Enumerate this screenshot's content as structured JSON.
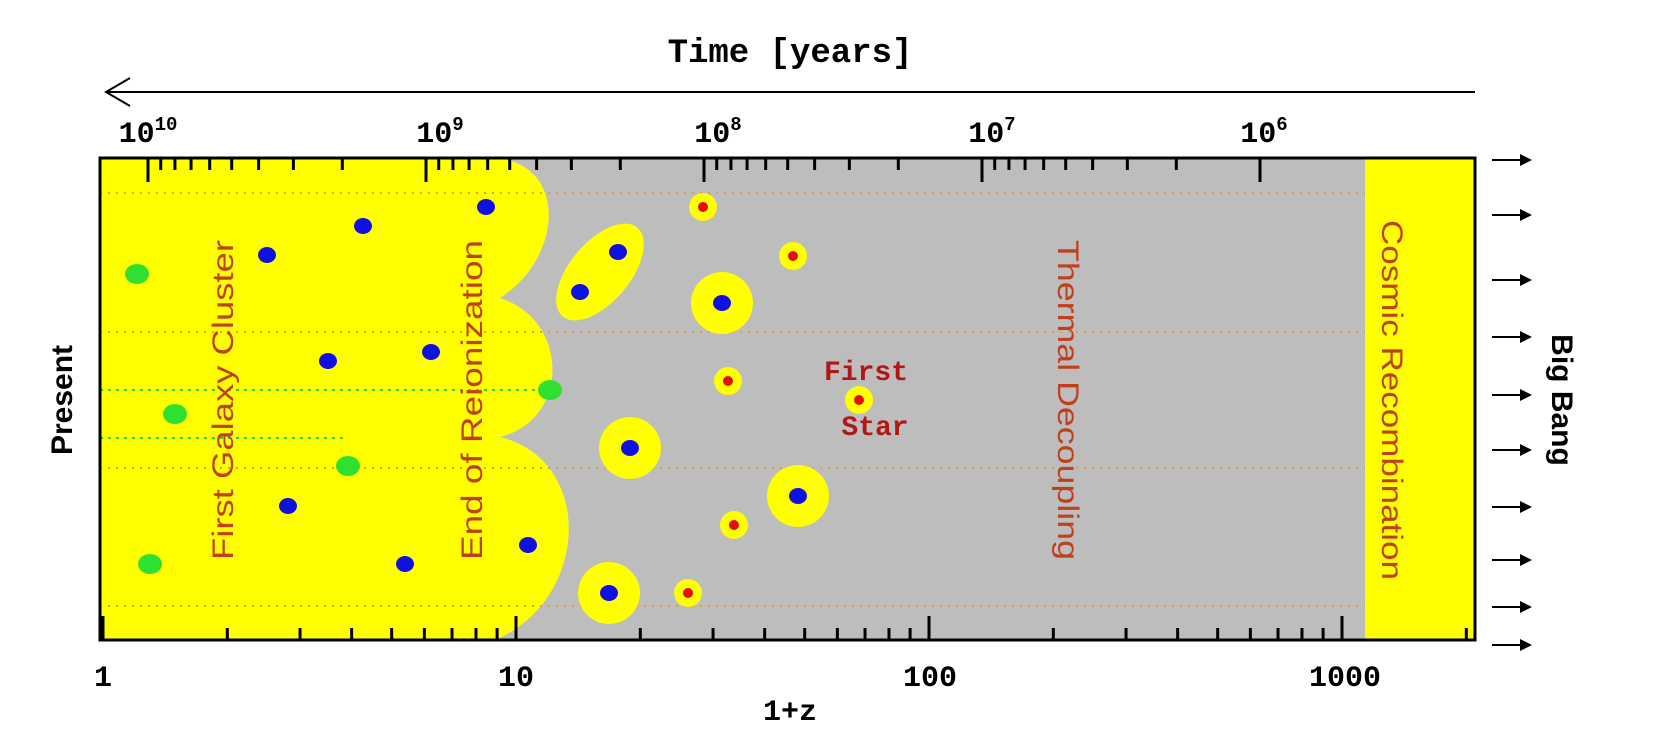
{
  "header": {
    "title": "Time [years]"
  },
  "top_axis": {
    "ticks": [
      {
        "base": "10",
        "exponent": "10"
      },
      {
        "base": "10",
        "exponent": "9"
      },
      {
        "base": "10",
        "exponent": "8"
      },
      {
        "base": "10",
        "exponent": "7"
      },
      {
        "base": "10",
        "exponent": "6"
      }
    ]
  },
  "bottom_axis": {
    "ticks": [
      "1",
      "10",
      "100",
      "1000"
    ],
    "label": "1+z"
  },
  "left_label": "Present",
  "right_label": "Big Bang",
  "regions": [
    "First Galaxy Cluster",
    "End of Reionization",
    "Thermal Decoupling",
    "Cosmic Recombination"
  ],
  "annotation": {
    "lines": [
      "First",
      "Star"
    ]
  }
}
